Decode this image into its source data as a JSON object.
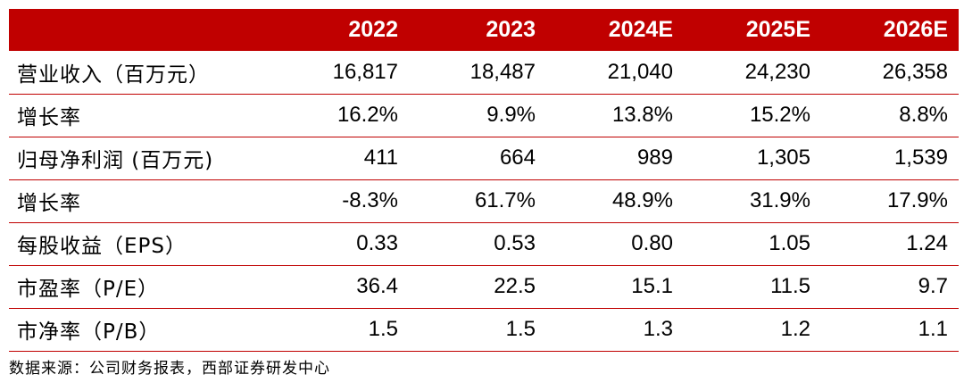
{
  "table": {
    "accent_color": "#c00000",
    "header": {
      "label": "",
      "years": [
        "2022",
        "2023",
        "2024E",
        "2025E",
        "2026E"
      ]
    },
    "rows": [
      {
        "label": "营业收入（百万元）",
        "values": [
          "16,817",
          "18,487",
          "21,040",
          "24,230",
          "26,358"
        ]
      },
      {
        "label": "增长率",
        "values": [
          "16.2%",
          "9.9%",
          "13.8%",
          "15.2%",
          "8.8%"
        ]
      },
      {
        "label": "归母净利润 (百万元)",
        "values": [
          "411",
          "664",
          "989",
          "1,305",
          "1,539"
        ]
      },
      {
        "label": "增长率",
        "values": [
          "-8.3%",
          "61.7%",
          "48.9%",
          "31.9%",
          "17.9%"
        ]
      },
      {
        "label": "每股收益（EPS）",
        "values": [
          "0.33",
          "0.53",
          "0.80",
          "1.05",
          "1.24"
        ]
      },
      {
        "label": "市盈率（P/E）",
        "values": [
          "36.4",
          "22.5",
          "15.1",
          "11.5",
          "9.7"
        ]
      },
      {
        "label": "市净率（P/B）",
        "values": [
          "1.5",
          "1.5",
          "1.3",
          "1.2",
          "1.1"
        ]
      }
    ]
  },
  "source": "数据来源：公司财务报表，西部证券研发中心"
}
